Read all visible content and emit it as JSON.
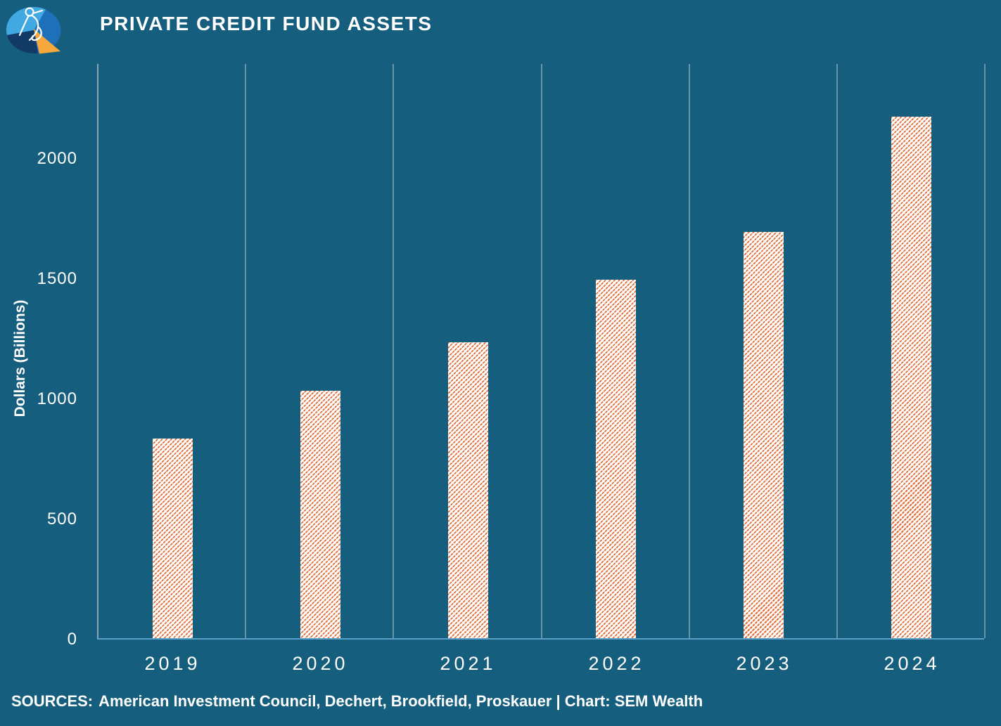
{
  "header": {
    "title": "PRIVATE CREDIT FUND ASSETS"
  },
  "logo": {
    "name": "SEM Wealth logo",
    "colors": {
      "light_blue": "#41A8E1",
      "mid_blue": "#1E71B8",
      "dark_blue": "#123A66",
      "orange": "#F6A83C",
      "line_art": "#FFFFFF"
    }
  },
  "chart_data": {
    "type": "bar",
    "title": "PRIVATE CREDIT FUND ASSETS",
    "categories": [
      "2019",
      "2020",
      "2021",
      "2022",
      "2023",
      "2024"
    ],
    "values": [
      830,
      1030,
      1230,
      1490,
      1690,
      2170
    ],
    "xlabel": "",
    "ylabel": "Dollars (Billions)",
    "ylim": [
      0,
      2400
    ],
    "yticks": [
      0,
      500,
      1000,
      1500,
      2000
    ],
    "grid": "vertical-only",
    "legend": "none",
    "bar_style": {
      "fill": "#FFFFFF",
      "hatch": "diagonal-dashed",
      "hatch_color": "#DC6B35"
    }
  },
  "footer": {
    "sources_label": "SOURCES:",
    "sources_rest": "American Investment Council, Dechert, Brookfield, Proskauer | Chart: SEM Wealth"
  },
  "colors": {
    "background": "#165E7E",
    "text": "#FFFFFF",
    "gridline": "#6694A9",
    "y_axis_line": "#85A7B6",
    "x_axis_line": "#58A1CB",
    "bar_fill": "#FFFFFF",
    "bar_hatch": "#DC6B35"
  }
}
